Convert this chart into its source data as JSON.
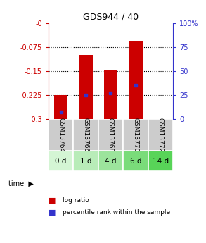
{
  "title": "GDS944 / 40",
  "samples": [
    "GSM13764",
    "GSM13766",
    "GSM13768",
    "GSM13770",
    "GSM13772"
  ],
  "time_labels": [
    "0 d",
    "1 d",
    "4 d",
    "6 d",
    "14 d"
  ],
  "log_ratios": [
    -0.225,
    -0.1,
    -0.148,
    -0.055,
    -0.3
  ],
  "percentile_ranks": [
    7.0,
    25.0,
    27.0,
    35.0,
    null
  ],
  "ylim_left": [
    -0.3,
    0.0
  ],
  "ylim_right": [
    0,
    100
  ],
  "yticks_left": [
    0.0,
    -0.075,
    -0.15,
    -0.225,
    -0.3
  ],
  "yticks_right": [
    100,
    75,
    50,
    25,
    0
  ],
  "ytick_labels_left": [
    "-0",
    "-0.075",
    "-0.15",
    "-0.225",
    "-0.3"
  ],
  "ytick_labels_right": [
    "100%",
    "75",
    "50",
    "25",
    "0"
  ],
  "bar_color": "#cc0000",
  "dot_color": "#3333cc",
  "bar_width": 0.55,
  "bg_color_samples": "#c8c8c8",
  "time_bg_colors": [
    "#d4f5d4",
    "#b8ecb8",
    "#9ce49c",
    "#7adc7a",
    "#58d458"
  ],
  "left_axis_color": "#cc0000",
  "right_axis_color": "#3333cc",
  "sample_cell_color": "#cccccc",
  "gridline_color": "black",
  "fig_bg": "white"
}
